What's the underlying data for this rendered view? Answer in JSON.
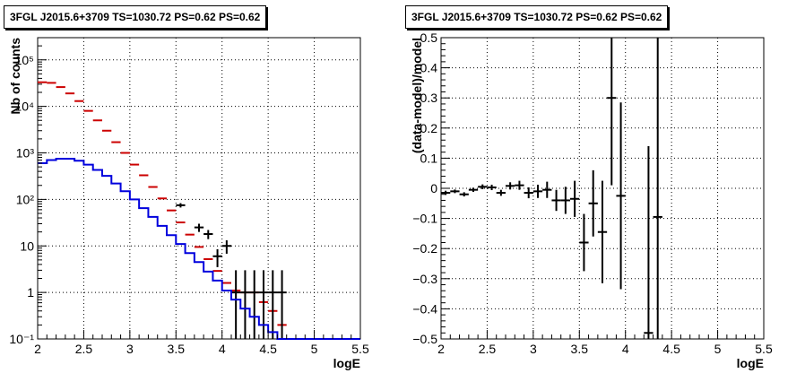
{
  "chart_data": [
    {
      "type": "line",
      "title": "3FGL J2015.6+3709 TS=1030.72 PS=0.62 PS=0.62",
      "xlabel": "logE",
      "ylabel": "Nb of counts",
      "xlim": [
        2,
        5.5
      ],
      "ylim": [
        0.1,
        300000
      ],
      "yscale": "log",
      "grid": true,
      "xticks": [
        "2",
        "2.5",
        "3",
        "3.5",
        "4",
        "4.5",
        "5",
        "5.5"
      ],
      "yticks": [
        {
          "value": 0.1,
          "label": "10⁻¹"
        },
        {
          "value": 1,
          "label": "1"
        },
        {
          "value": 10,
          "label": "10"
        },
        {
          "value": 100,
          "label": "10²"
        },
        {
          "value": 1000,
          "label": "10³"
        },
        {
          "value": 10000,
          "label": "10⁴"
        },
        {
          "value": 100000,
          "label": "10⁵"
        }
      ],
      "series": [
        {
          "color": "#cc0000",
          "style": "markers",
          "x": [
            2.05,
            2.15,
            2.25,
            2.35,
            2.45,
            2.55,
            2.65,
            2.75,
            2.85,
            2.95,
            3.05,
            3.15,
            3.25,
            3.35,
            3.45,
            3.55,
            3.65,
            3.75,
            3.85,
            3.95,
            4.05,
            4.15,
            4.25,
            4.35,
            4.45,
            4.55,
            4.65
          ],
          "y": [
            33000,
            32000,
            26000,
            19000,
            13000,
            8000,
            5000,
            3000,
            1700,
            1000,
            560,
            330,
            185,
            105,
            58,
            32,
            17.5,
            9.5,
            5.2,
            2.9,
            1.6,
            1.1,
            1.0,
            1.0,
            0.62,
            0.4,
            0.2
          ],
          "err_lo": [
            0,
            0,
            0,
            0,
            0,
            0,
            0,
            0,
            0,
            0,
            0,
            0,
            0,
            0,
            0,
            0,
            0,
            0,
            0,
            0,
            0,
            0,
            0,
            0,
            0,
            0,
            0
          ],
          "err_hi": [
            0,
            0,
            0,
            0,
            0,
            0,
            0,
            0,
            0,
            0,
            0,
            0,
            0,
            0,
            0,
            0,
            0,
            0,
            0,
            0,
            0,
            0,
            0,
            0,
            0,
            0,
            0
          ]
        },
        {
          "color": "#000000",
          "style": "markers",
          "x": [
            3.55,
            3.75,
            3.85,
            3.95,
            4.05,
            4.15,
            4.25,
            4.35,
            4.45,
            4.55,
            4.65
          ],
          "y": [
            75,
            25,
            18,
            6,
            10,
            1,
            1,
            1,
            1,
            1,
            1
          ],
          "err_lo": [
            8,
            5,
            4,
            2.5,
            3.2,
            0.9,
            0.9,
            0.9,
            0.9,
            0.9,
            0.9
          ],
          "err_hi": [
            8,
            5,
            4,
            2.5,
            3.2,
            2,
            2,
            2,
            2,
            2,
            2
          ]
        },
        {
          "color": "#0000dd",
          "style": "steps",
          "x": [
            2.05,
            2.15,
            2.25,
            2.35,
            2.45,
            2.55,
            2.65,
            2.75,
            2.85,
            2.95,
            3.05,
            3.15,
            3.25,
            3.35,
            3.45,
            3.55,
            3.65,
            3.75,
            3.85,
            3.95,
            4.05,
            4.15,
            4.25,
            4.35,
            4.45,
            4.55,
            4.65,
            4.75,
            4.85,
            4.95,
            5.05,
            5.15,
            5.25,
            5.35,
            5.45
          ],
          "y": [
            600,
            700,
            750,
            750,
            680,
            560,
            430,
            320,
            220,
            150,
            100,
            65,
            42,
            27,
            17,
            11,
            7,
            4.5,
            2.8,
            1.8,
            1.1,
            0.7,
            0.45,
            0.3,
            0.2,
            0.14,
            0.1,
            0.1,
            0.1,
            0.1,
            0.1,
            0.1,
            0.1,
            0.1,
            0.1
          ]
        }
      ]
    },
    {
      "type": "scatter",
      "title": "3FGL J2015.6+3709 TS=1030.72 PS=0.62 PS=0.62",
      "xlabel": "logE",
      "ylabel": "(data-model)/model",
      "xlim": [
        2,
        5.5
      ],
      "ylim": [
        -0.5,
        0.5
      ],
      "grid": true,
      "xticks": [
        "2",
        "2.5",
        "3",
        "3.5",
        "4",
        "4.5",
        "5",
        "5.5"
      ],
      "yticks": [
        "−0.5",
        "−0.4",
        "−0.3",
        "−0.2",
        "−0.1",
        "0",
        "0.1",
        "0.2",
        "0.3",
        "0.4",
        "0.5"
      ],
      "series": [
        {
          "color": "#000000",
          "x": [
            2.05,
            2.15,
            2.25,
            2.35,
            2.45,
            2.55,
            2.65,
            2.75,
            2.85,
            2.95,
            3.05,
            3.15,
            3.25,
            3.35,
            3.45,
            3.55,
            3.65,
            3.75,
            3.85,
            3.95,
            4.25,
            4.35
          ],
          "y": [
            -0.015,
            -0.01,
            -0.02,
            -0.005,
            0.005,
            0.003,
            -0.015,
            0.008,
            0.01,
            -0.015,
            -0.01,
            -0.005,
            -0.04,
            -0.04,
            -0.035,
            -0.18,
            -0.05,
            -0.145,
            0.3,
            -0.025,
            -0.48,
            -0.095
          ],
          "err": [
            0.007,
            0.006,
            0.007,
            0.007,
            0.008,
            0.009,
            0.01,
            0.012,
            0.015,
            0.018,
            0.022,
            0.027,
            0.035,
            0.045,
            0.06,
            0.095,
            0.11,
            0.17,
            0.29,
            0.31,
            0.62,
            0.6
          ]
        }
      ]
    }
  ]
}
